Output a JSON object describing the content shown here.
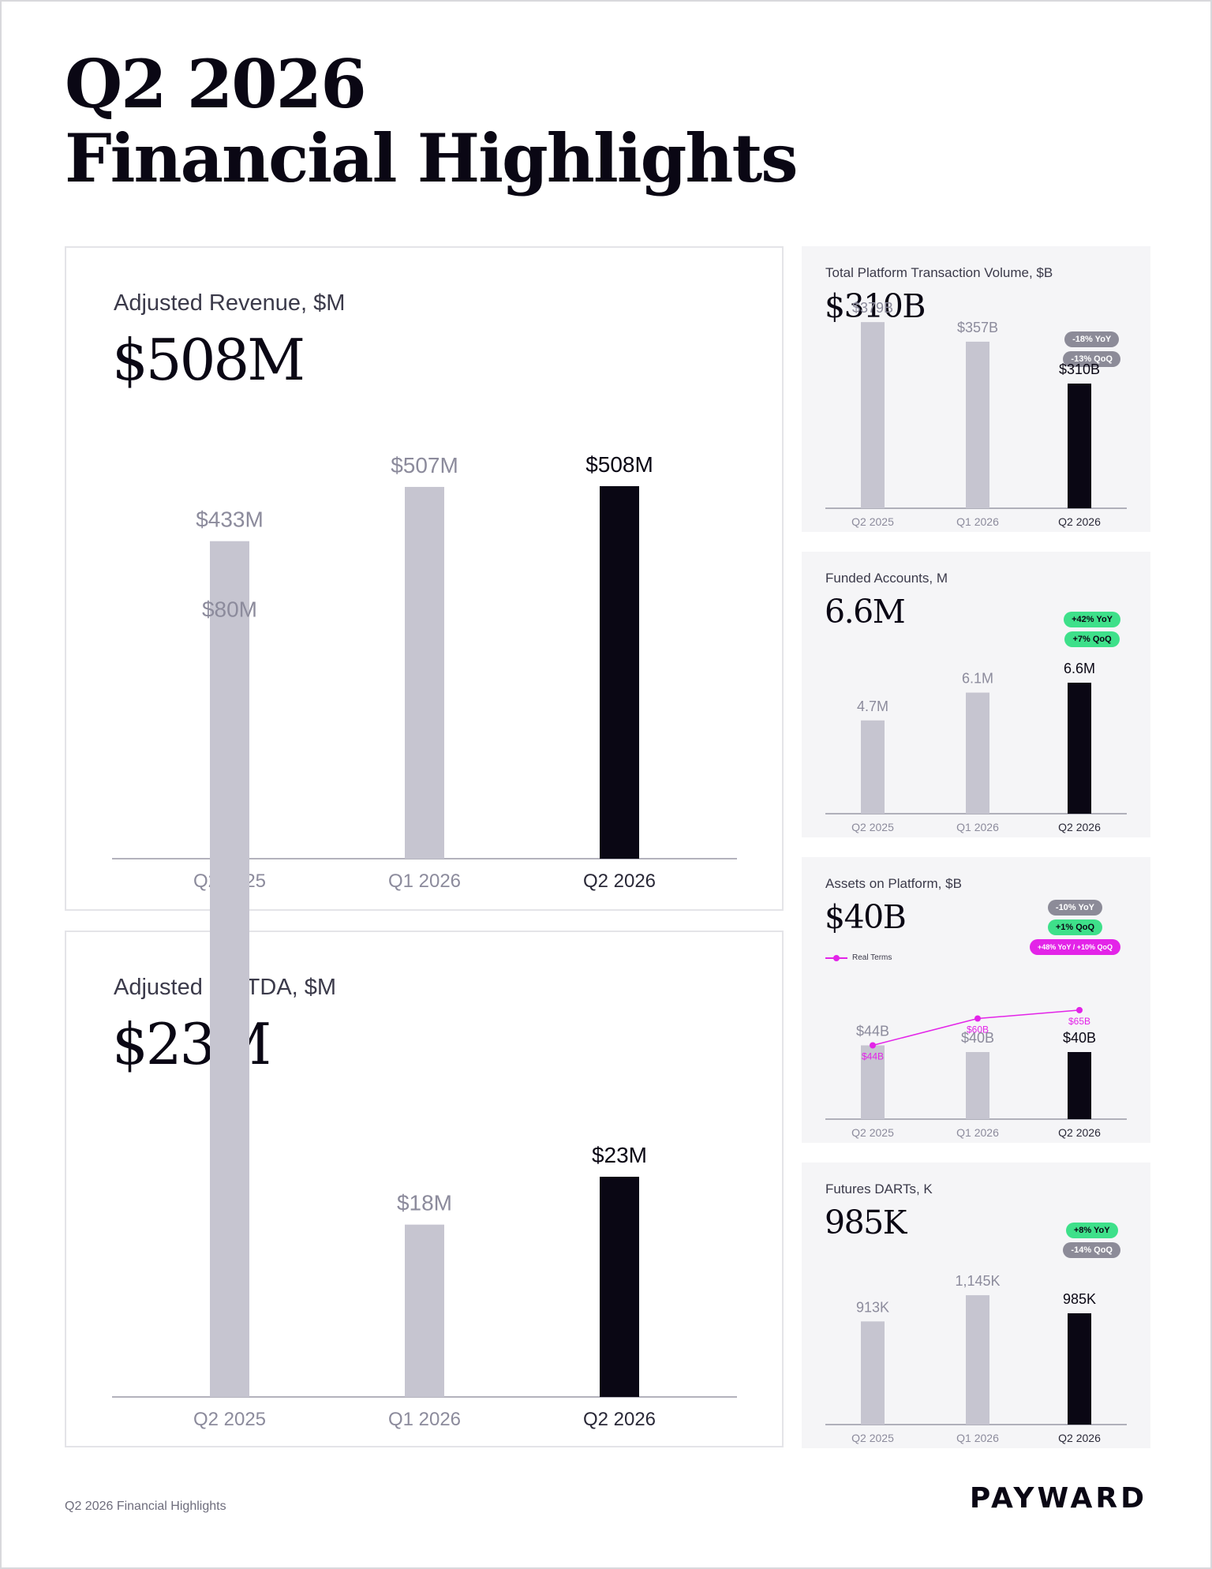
{
  "header": {
    "title_line1": "Q2 2026",
    "title_line2": "Financial Highlights"
  },
  "colors": {
    "prior_bar": "#c6c5d0",
    "current_bar": "#0a0714",
    "prior_label": "#8c8b9c",
    "real_terms_line": "#e324e8",
    "badge_negative": "#8c8b98",
    "badge_positive": "#3ee08a"
  },
  "cards": {
    "revenue": {
      "label": "Adjusted Revenue, $M",
      "value": "$508M"
    },
    "ebitda": {
      "label": "Adjusted EBITDA, $M",
      "value": "$23M"
    },
    "volume": {
      "label": "Total Platform Transaction Volume, $B",
      "value": "$310B",
      "badges": [
        "-18% YoY",
        "-13% QoQ"
      ]
    },
    "accounts": {
      "label": "Funded Accounts, M",
      "value": "6.6M",
      "badges": [
        "+42% YoY",
        "+7% QoQ"
      ]
    },
    "assets": {
      "label": "Assets on Platform, $B",
      "value": "$40B",
      "badges": [
        "-10% YoY",
        "+1% QoQ",
        "+48% YoY / +10% QoQ"
      ],
      "legend": "Real Terms"
    },
    "darts": {
      "label": "Futures DARTs, K",
      "value": "985K",
      "badges": [
        "+8% YoY",
        "-14% QoQ"
      ]
    }
  },
  "chart_data": [
    {
      "id": "revenue",
      "type": "bar",
      "title": "Adjusted Revenue, $M",
      "categories": [
        "Q2 2025",
        "Q1 2026",
        "Q2 2026"
      ],
      "values": [
        433,
        507,
        508
      ],
      "labels": [
        "$433M",
        "$507M",
        "$508M"
      ],
      "ylim": [
        0,
        550
      ]
    },
    {
      "id": "ebitda",
      "type": "bar",
      "title": "Adjusted EBITDA, $M",
      "categories": [
        "Q2 2025",
        "Q1 2026",
        "Q2 2026"
      ],
      "values": [
        80,
        18,
        23
      ],
      "labels": [
        "$80M",
        "$18M",
        "$23M"
      ],
      "ylim": [
        0,
        95
      ]
    },
    {
      "id": "volume",
      "type": "bar",
      "title": "Total Platform Transaction Volume, $B",
      "categories": [
        "Q2 2025",
        "Q1 2026",
        "Q2 2026"
      ],
      "values": [
        379,
        357,
        310
      ],
      "labels": [
        "$379B",
        "$357B",
        "$310B"
      ],
      "ylim": [
        170,
        420
      ]
    },
    {
      "id": "accounts",
      "type": "bar",
      "title": "Funded Accounts, M",
      "categories": [
        "Q2 2025",
        "Q1 2026",
        "Q2 2026"
      ],
      "values": [
        4.7,
        6.1,
        6.6
      ],
      "labels": [
        "4.7M",
        "6.1M",
        "6.6M"
      ],
      "ylim": [
        0,
        7.2
      ]
    },
    {
      "id": "assets",
      "type": "bar",
      "title": "Assets on Platform, $B",
      "categories": [
        "Q2 2025",
        "Q1 2026",
        "Q2 2026"
      ],
      "values": [
        44,
        40,
        40
      ],
      "labels": [
        "$44B",
        "$40B",
        "$40B"
      ],
      "ylim": [
        0,
        80
      ],
      "series": [
        {
          "name": "Real Terms",
          "type": "line",
          "values": [
            44,
            60,
            65
          ],
          "labels": [
            "$44B",
            "$60B",
            "$65B"
          ]
        }
      ]
    },
    {
      "id": "darts",
      "type": "bar",
      "title": "Futures DARTs, K",
      "categories": [
        "Q2 2025",
        "Q1 2026",
        "Q2 2026"
      ],
      "values": [
        913,
        1145,
        985
      ],
      "labels": [
        "913K",
        "1,145K",
        "985K"
      ],
      "ylim": [
        0,
        1350
      ]
    }
  ],
  "footer": {
    "text": "Q2 2026 Financial Highlights",
    "logo": "PAYWARD"
  }
}
